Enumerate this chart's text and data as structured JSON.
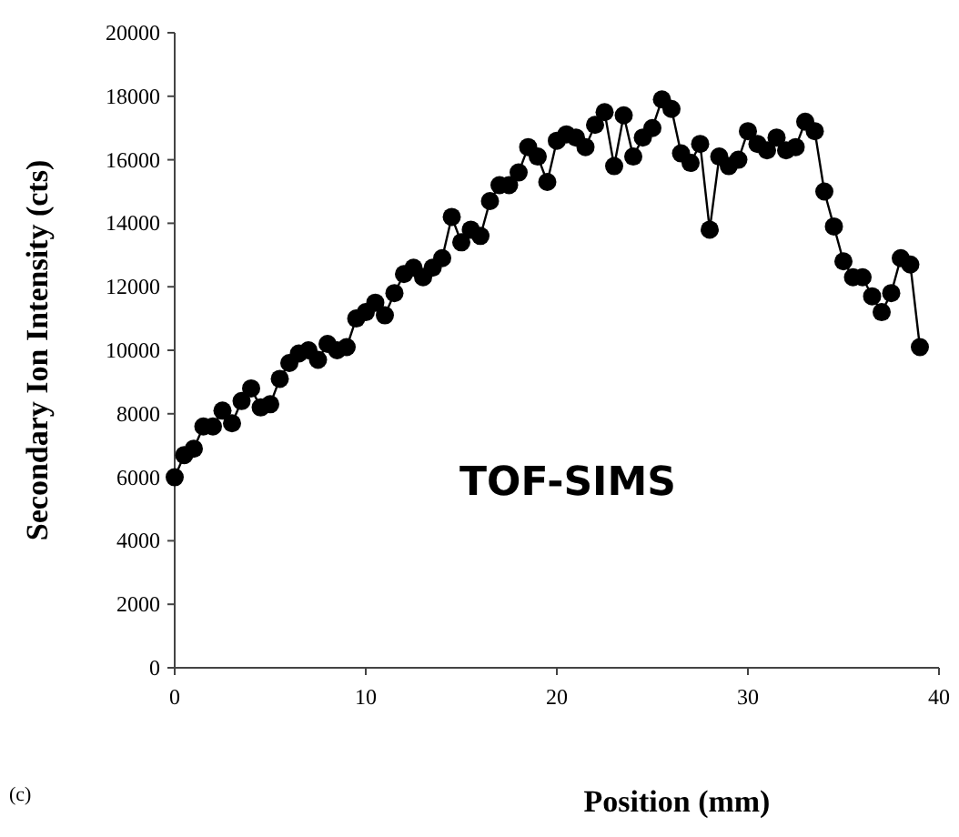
{
  "chart_data": {
    "type": "line",
    "xlabel": "Position (mm)",
    "ylabel": "Secondary Ion Intensity (cts)",
    "x": [
      0,
      0.5,
      1,
      1.5,
      2,
      2.5,
      3,
      3.5,
      4,
      4.5,
      5,
      5.5,
      6,
      6.5,
      7,
      7.5,
      8,
      8.5,
      9,
      9.5,
      10,
      10.5,
      11,
      11.5,
      12,
      12.5,
      13,
      13.5,
      14,
      14.5,
      15,
      15.5,
      16,
      16.5,
      17,
      17.5,
      18,
      18.5,
      19,
      19.5,
      20,
      20.5,
      21,
      21.5,
      22,
      22.5,
      23,
      23.5,
      24,
      24.5,
      25,
      25.5,
      26,
      26.5,
      27,
      27.5,
      28,
      28.5,
      29,
      29.5,
      30,
      30.5,
      31,
      31.5,
      32,
      32.5,
      33,
      33.5,
      34,
      34.5,
      35,
      35.5,
      36,
      36.5,
      37,
      37.5,
      38,
      38.5,
      39
    ],
    "series": [
      {
        "color": "#000000",
        "values": [
          6000,
          6700,
          6900,
          7600,
          7600,
          8100,
          7700,
          8400,
          8800,
          8200,
          8300,
          9100,
          9600,
          9900,
          10000,
          9700,
          10200,
          10000,
          10100,
          11000,
          11200,
          11500,
          11100,
          11800,
          12400,
          12600,
          12300,
          12600,
          12900,
          14200,
          13400,
          13800,
          13600,
          14700,
          15200,
          15200,
          15600,
          16400,
          16100,
          15300,
          16600,
          16800,
          16700,
          16400,
          17100,
          17500,
          15800,
          17400,
          16100,
          16700,
          17000,
          17900,
          17600,
          16200,
          15900,
          16500,
          13800,
          16100,
          15800,
          16000,
          16900,
          16500,
          16300,
          16700,
          16300,
          16400,
          17200,
          16900,
          15000,
          13900,
          12800,
          12300,
          12300,
          11700,
          11200,
          11800,
          12900,
          12700,
          10100
        ]
      }
    ],
    "xlim": [
      0,
      40
    ],
    "xticks": [
      0,
      10,
      20,
      30,
      40
    ],
    "ylim": [
      0,
      20000
    ],
    "yticks": [
      0,
      2000,
      4000,
      6000,
      8000,
      10000,
      12000,
      14000,
      16000,
      18000,
      20000
    ],
    "marker": "circle",
    "line_style": "solid",
    "annotations": [
      "TOF-SIMS",
      "(c)"
    ]
  }
}
